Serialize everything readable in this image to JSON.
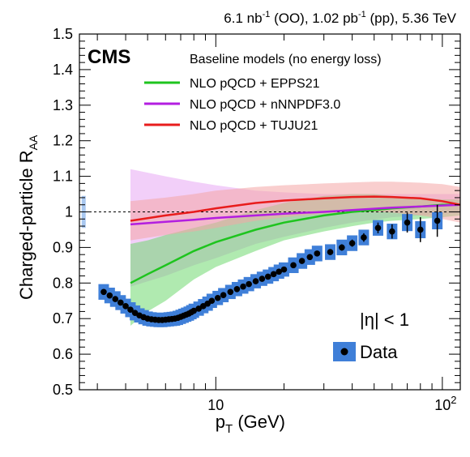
{
  "header": {
    "title_parts": [
      "6.1 nb",
      "-1",
      " (OO), 1.02 pb",
      "-1",
      " (pp), 5.36 TeV"
    ]
  },
  "experiment_label": "CMS",
  "chart_data": {
    "type": "scatter",
    "xscale": "log",
    "xlim": [
      2.5,
      120
    ],
    "ylim": [
      0.5,
      1.5
    ],
    "yticks": [
      0.5,
      0.6,
      0.7,
      0.8,
      0.9,
      1.0,
      1.1,
      1.2,
      1.3,
      1.4,
      1.5
    ],
    "ytick_labels": [
      "0.5",
      "0.6",
      "0.7",
      "0.8",
      "0.9",
      "1",
      "1.1",
      "1.2",
      "1.3",
      "1.4",
      "1.5"
    ],
    "xtick_labels": [
      {
        "base": "10",
        "exp": ""
      },
      {
        "base": "10",
        "exp": "2"
      }
    ],
    "xlabel": {
      "main": "p",
      "sub": "T",
      "rest": " (GeV)"
    },
    "ylabel": {
      "main": "Charged-particle R",
      "sub": "AA"
    },
    "reference_line": 1.0,
    "normalization_box": {
      "x": 2.6,
      "y_low": 0.955,
      "y_high": 1.045,
      "color": "#a9c8f0"
    },
    "legend": {
      "header": "Baseline models (no energy loss)",
      "eta_label": "|η| < 1",
      "data_label": "Data"
    },
    "models": [
      {
        "name": "NLO pQCD + EPPS21",
        "color": "#1ec41e",
        "band_color": "#6fd86f",
        "x": [
          4.2,
          5,
          6,
          8,
          10,
          15,
          20,
          30,
          40,
          50,
          60,
          80,
          100,
          120
        ],
        "y": [
          0.8,
          0.825,
          0.85,
          0.89,
          0.915,
          0.95,
          0.97,
          0.99,
          1.0,
          1.005,
          1.01,
          1.015,
          1.02,
          1.02
        ],
        "low": [
          0.68,
          0.72,
          0.75,
          0.81,
          0.845,
          0.89,
          0.92,
          0.945,
          0.96,
          0.97,
          0.975,
          0.98,
          0.985,
          0.99
        ],
        "high": [
          0.91,
          0.92,
          0.935,
          0.955,
          0.97,
          1.005,
          1.025,
          1.045,
          1.05,
          1.05,
          1.045,
          1.04,
          1.035,
          1.035
        ]
      },
      {
        "name": "NLO pQCD + nNNPDF3.0",
        "color": "#b31ee0",
        "band_color": "#e7a8f4",
        "x": [
          4.2,
          6,
          8,
          10,
          15,
          20,
          30,
          40,
          60,
          80,
          100,
          120
        ],
        "y": [
          0.965,
          0.972,
          0.978,
          0.983,
          0.99,
          0.995,
          1.0,
          1.005,
          1.012,
          1.015,
          1.018,
          1.02
        ],
        "low": [
          0.79,
          0.82,
          0.85,
          0.87,
          0.91,
          0.93,
          0.955,
          0.97,
          0.985,
          0.99,
          0.995,
          0.995
        ],
        "high": [
          1.12,
          1.1,
          1.085,
          1.075,
          1.06,
          1.055,
          1.05,
          1.05,
          1.05,
          1.05,
          1.05,
          1.05
        ]
      },
      {
        "name": "NLO pQCD + TUJU21",
        "color": "#e81c1c",
        "band_color": "#f4a6a6",
        "x": [
          4.2,
          6,
          8,
          10,
          15,
          20,
          30,
          40,
          50,
          60,
          80,
          100,
          120
        ],
        "y": [
          0.975,
          0.99,
          1.0,
          1.01,
          1.025,
          1.032,
          1.038,
          1.042,
          1.043,
          1.042,
          1.038,
          1.03,
          1.02
        ],
        "low": [
          0.92,
          0.935,
          0.945,
          0.955,
          0.975,
          0.985,
          0.995,
          1.0,
          1.0,
          0.998,
          0.99,
          0.98,
          0.97
        ],
        "high": [
          1.03,
          1.04,
          1.05,
          1.06,
          1.07,
          1.075,
          1.08,
          1.083,
          1.085,
          1.085,
          1.082,
          1.078,
          1.07
        ]
      }
    ],
    "data_series": {
      "name": "Data",
      "marker_color": "#000000",
      "syst_color": "#3f7fd8",
      "x": [
        3.2,
        3.4,
        3.6,
        3.8,
        4.0,
        4.2,
        4.4,
        4.6,
        4.8,
        5.0,
        5.2,
        5.4,
        5.6,
        5.8,
        6.0,
        6.2,
        6.4,
        6.6,
        6.8,
        7.0,
        7.2,
        7.4,
        7.6,
        7.8,
        8.0,
        8.4,
        8.8,
        9.2,
        9.6,
        10.2,
        10.8,
        11.6,
        12.4,
        13.2,
        14.0,
        15.0,
        16.0,
        17.0,
        18.0,
        19.0,
        20.0,
        22.0,
        24.0,
        26.0,
        28.0,
        32.0,
        36.0,
        40.0,
        45.0,
        52.0,
        60.0,
        70.0,
        80.0,
        95.0
      ],
      "y": [
        0.775,
        0.765,
        0.755,
        0.745,
        0.735,
        0.725,
        0.716,
        0.709,
        0.704,
        0.7,
        0.698,
        0.697,
        0.696,
        0.696,
        0.697,
        0.698,
        0.699,
        0.7,
        0.702,
        0.705,
        0.708,
        0.711,
        0.714,
        0.718,
        0.722,
        0.728,
        0.735,
        0.742,
        0.75,
        0.758,
        0.766,
        0.775,
        0.783,
        0.79,
        0.797,
        0.805,
        0.812,
        0.818,
        0.825,
        0.832,
        0.838,
        0.85,
        0.862,
        0.873,
        0.883,
        0.887,
        0.9,
        0.912,
        0.928,
        0.955,
        0.945,
        0.97,
        0.95,
        0.975
      ],
      "stat_err": [
        0.004,
        0.004,
        0.004,
        0.004,
        0.004,
        0.004,
        0.004,
        0.004,
        0.004,
        0.004,
        0.004,
        0.004,
        0.004,
        0.004,
        0.004,
        0.004,
        0.004,
        0.004,
        0.004,
        0.004,
        0.004,
        0.004,
        0.004,
        0.004,
        0.004,
        0.004,
        0.004,
        0.004,
        0.004,
        0.004,
        0.004,
        0.004,
        0.004,
        0.004,
        0.004,
        0.005,
        0.005,
        0.005,
        0.005,
        0.005,
        0.005,
        0.006,
        0.006,
        0.006,
        0.007,
        0.008,
        0.009,
        0.01,
        0.012,
        0.015,
        0.02,
        0.028,
        0.035,
        0.045
      ],
      "syst_err": [
        0.022,
        0.022,
        0.022,
        0.021,
        0.021,
        0.021,
        0.021,
        0.02,
        0.02,
        0.02,
        0.02,
        0.02,
        0.02,
        0.02,
        0.02,
        0.02,
        0.02,
        0.02,
        0.02,
        0.02,
        0.02,
        0.02,
        0.02,
        0.02,
        0.02,
        0.02,
        0.02,
        0.02,
        0.02,
        0.02,
        0.02,
        0.02,
        0.02,
        0.02,
        0.02,
        0.02,
        0.02,
        0.02,
        0.02,
        0.02,
        0.02,
        0.022,
        0.022,
        0.022,
        0.022,
        0.022,
        0.022,
        0.022,
        0.022,
        0.022,
        0.022,
        0.024,
        0.024,
        0.024
      ]
    }
  }
}
